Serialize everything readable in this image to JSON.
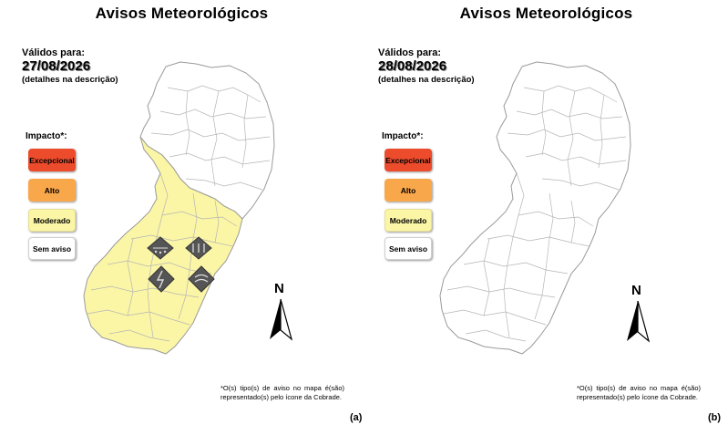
{
  "panels": [
    {
      "title": "Avisos Meteorológicos",
      "valid_label": "Válidos para:",
      "date": "27/08/2026",
      "details": "(detalhes na descrição)",
      "impact_title": "Impacto*:",
      "legend": [
        "Excepcional",
        "Alto",
        "Moderado",
        "Sem aviso"
      ],
      "north": "N",
      "footnote": "*O(s) tipo(s) de aviso no mapa é(são) representado(s) pelo ícone da Cobrade.",
      "tag": "(a)",
      "warning_level": "Moderado",
      "warning_icons": [
        "hail-warning-icon",
        "rain-warning-icon",
        "storm-warning-icon",
        "gale-warning-icon"
      ]
    },
    {
      "title": "Avisos Meteorológicos",
      "valid_label": "Válidos para:",
      "date": "28/08/2026",
      "details": "(detalhes na descrição)",
      "impact_title": "Impacto*:",
      "legend": [
        "Excepcional",
        "Alto",
        "Moderado",
        "Sem aviso"
      ],
      "north": "N",
      "footnote": "*O(s) tipo(s) de aviso no mapa é(são) representado(s) pelo ícone da Cobrade.",
      "tag": "(b)",
      "warning_level": "Sem aviso",
      "warning_icons": []
    }
  ],
  "colors": {
    "excepcional": "#ec4b2c",
    "alto": "#f9a74b",
    "moderado": "#fbf6a6",
    "sem_aviso": "#ffffff"
  }
}
